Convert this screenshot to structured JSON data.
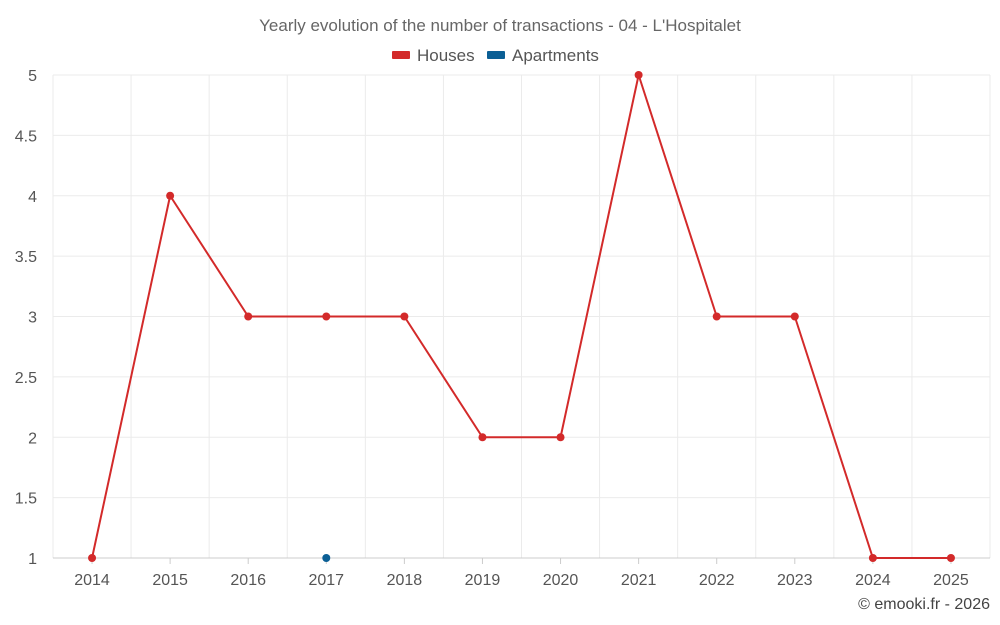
{
  "chart_data": {
    "type": "line",
    "title": "Yearly evolution of the number of transactions - 04 - L'Hospitalet",
    "xlabel": "",
    "ylabel": "",
    "categories": [
      "2014",
      "2015",
      "2016",
      "2017",
      "2018",
      "2019",
      "2020",
      "2021",
      "2022",
      "2023",
      "2024",
      "2025"
    ],
    "yticks": [
      "1",
      "1.5",
      "2",
      "2.5",
      "3",
      "3.5",
      "4",
      "4.5",
      "5"
    ],
    "ylim": [
      1,
      5
    ],
    "grid": true,
    "legend_position": "top-center",
    "series": [
      {
        "name": "Houses",
        "color": "#d32a2a",
        "values": [
          1,
          4,
          3,
          3,
          3,
          2,
          2,
          5,
          3,
          3,
          1,
          1
        ]
      },
      {
        "name": "Apartments",
        "color": "#0b5f95",
        "values": [
          null,
          null,
          null,
          1,
          null,
          null,
          null,
          null,
          null,
          null,
          null,
          null
        ]
      }
    ],
    "credit": "© emooki.fr - 2026"
  }
}
